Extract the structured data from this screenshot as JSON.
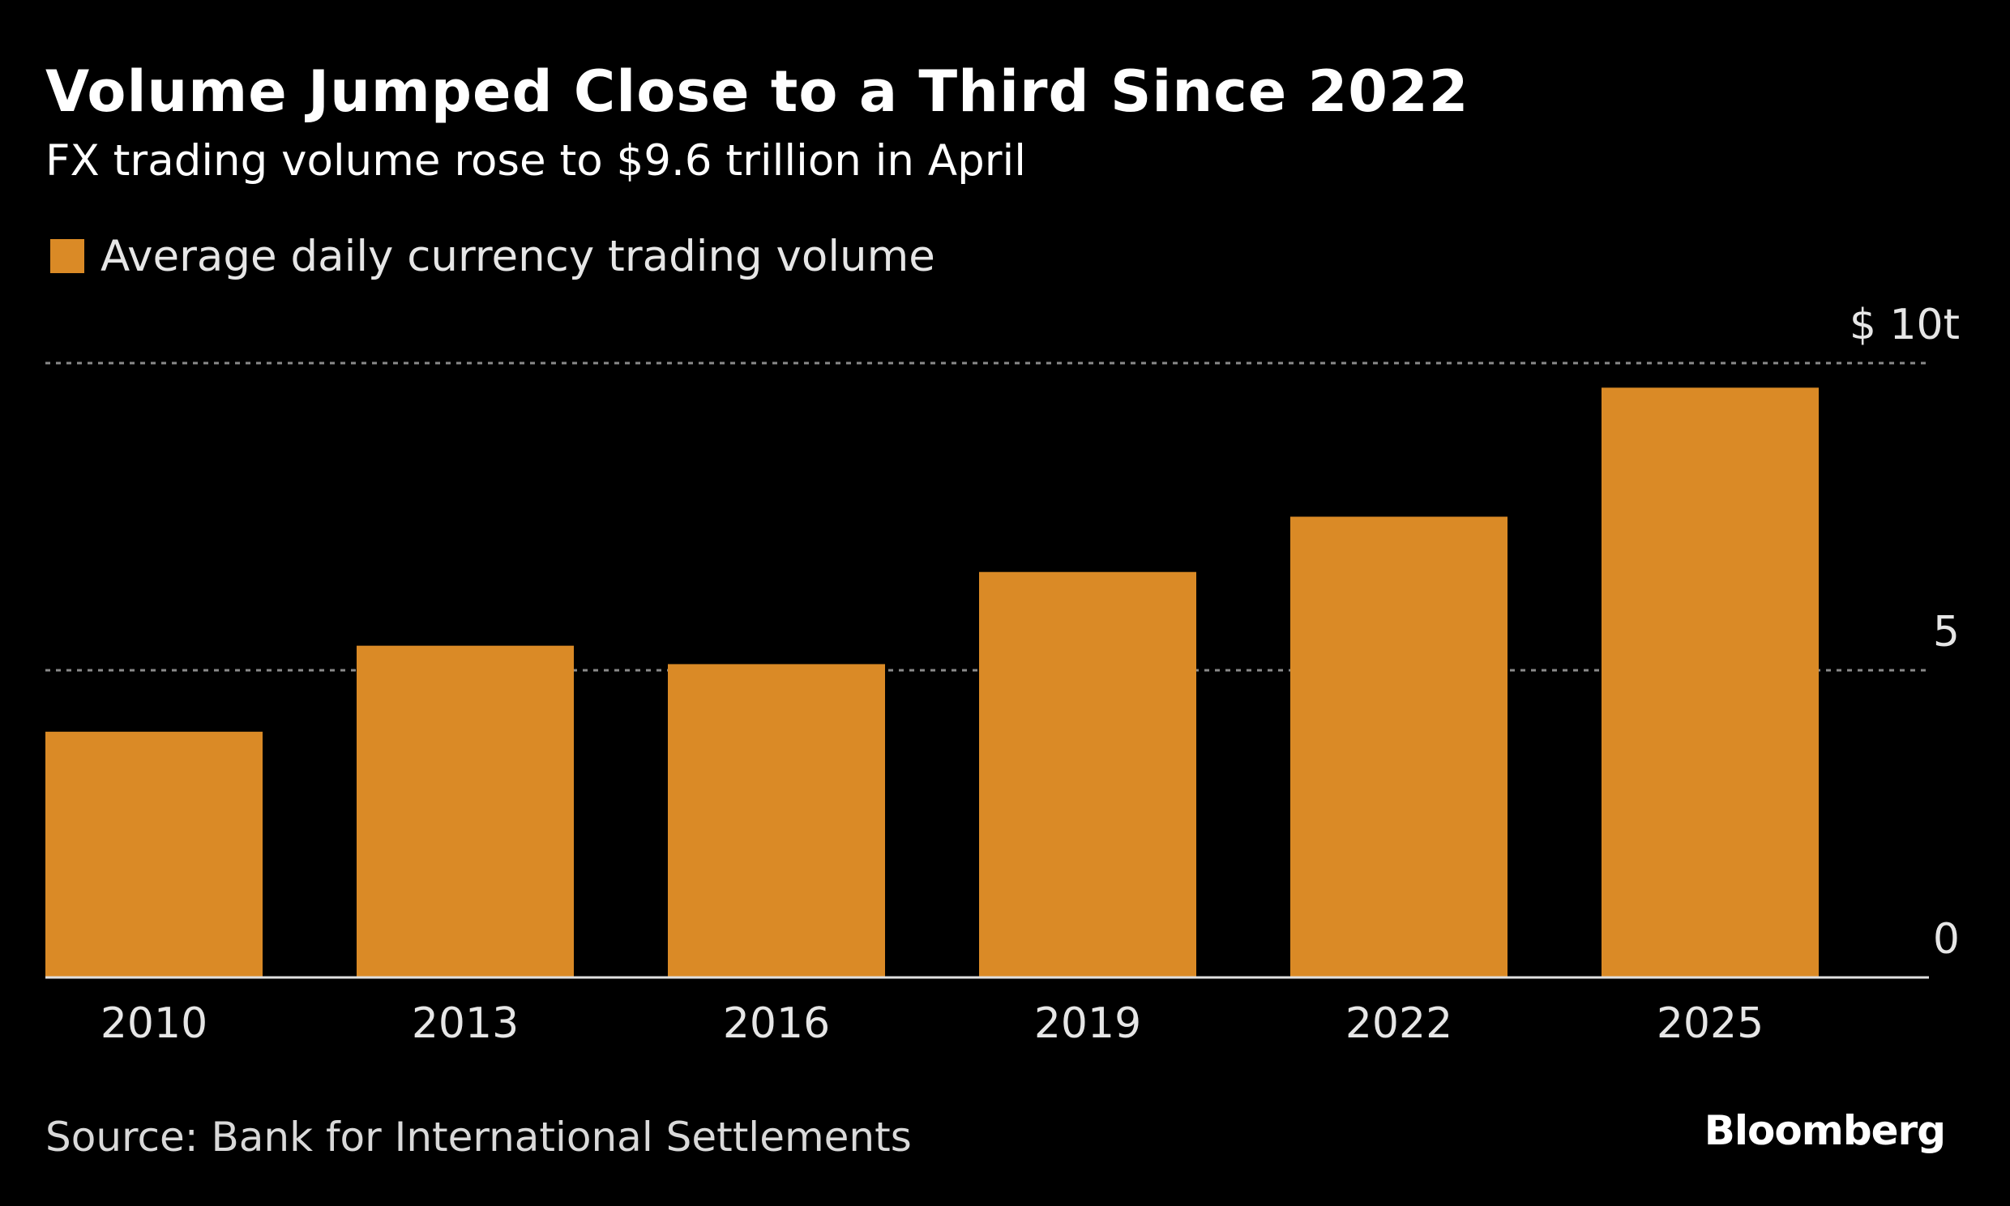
{
  "title": "Volume Jumped Close to a Third Since 2022",
  "subtitle": "FX trading volume rose to $9.6 trillion in April",
  "source": "Source: Bank for International Settlements",
  "brand": "Bloomberg",
  "colors": {
    "bar": "#DA8A26",
    "background": "#000000",
    "text": "#FFFFFF",
    "grid": "#8A8A8A"
  },
  "chart_data": {
    "type": "bar",
    "categories": [
      "2010",
      "2013",
      "2016",
      "2019",
      "2022",
      "2025"
    ],
    "series": [
      {
        "name": "Average daily currency trading volume",
        "values": [
          4.0,
          5.4,
          5.1,
          6.6,
          7.5,
          9.6
        ]
      }
    ],
    "ylim": [
      0,
      10
    ],
    "yticks": [
      {
        "value": 0,
        "label": "0"
      },
      {
        "value": 5,
        "label": "5"
      },
      {
        "value": 10,
        "label": "$ 10t"
      }
    ],
    "grid": true,
    "legend_position": "top-left"
  }
}
